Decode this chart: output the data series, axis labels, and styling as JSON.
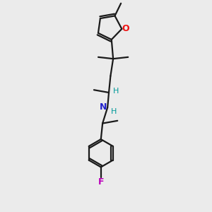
{
  "bg_color": "#ebebeb",
  "bond_color": "#1a1a1a",
  "oxygen_color": "#ee1111",
  "nitrogen_color": "#2222cc",
  "fluorine_color": "#bb00bb",
  "hydrogen_color": "#009999",
  "lw": 1.6,
  "figsize": [
    3.0,
    3.0
  ],
  "dpi": 100,
  "xlim": [
    -1.2,
    1.2
  ],
  "ylim": [
    -3.2,
    3.2
  ]
}
